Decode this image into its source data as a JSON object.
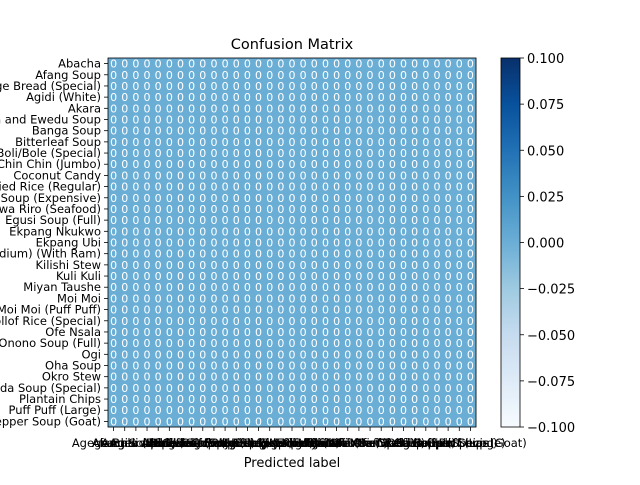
{
  "chart_data": {
    "type": "heatmap",
    "title": "Confusion Matrix",
    "xlabel": "Predicted label",
    "ylabel": "",
    "row_labels": [
      "Abacha",
      "Afang Soup",
      "Agege Bread (Special)",
      "Agidi (White)",
      "Akara",
      "Amala and Ewedu Soup",
      "Banga Soup",
      "Bitterleaf Soup",
      "Boli/Bole (Special)",
      "Chin Chin (Jumbo)",
      "Coconut Candy",
      "Fried Rice (Regular)",
      "Edikang Ikong Soup (Expensive)",
      "Ewa Riro (Seafood)",
      "Egusi Soup (Full)",
      "Ekpang Nkukwo",
      "Ekpang Ubi",
      "Nkwobi (Medium) (With Ram)",
      "Kilishi Stew",
      "Kuli Kuli",
      "Miyan Taushe",
      "Moi Moi",
      "Moi Moi (Puff Puff)",
      "Jollof Rice (Special)",
      "Ofe Nsala",
      "Ofe Onono Soup (Full)",
      "Ogi",
      "Oha Soup",
      "Okro Stew",
      "Ofada Soup (Special)",
      "Plantain Chips",
      "Puff Puff (Large)",
      "Pepper Soup (Goat)"
    ],
    "col_labels": [
      "Abacha",
      "Afang Soup",
      "Agege Bread (Special)",
      "Agidi (White)",
      "Akara",
      "Amala and Ewedu Soup",
      "Banga Soup",
      "Bitterleaf Soup",
      "Boli/Bole (Special)",
      "Chin Chin (Jumbo)",
      "Coconut Candy",
      "Fried Rice (Regular)",
      "Edikang Ikong Soup (Expensive)",
      "Ewa Riro (Seafood)",
      "Egusi Soup (Full)",
      "Ekpang Nkukwo",
      "Ekpang Ubi",
      "Nkwobi (Medium) (With Ram)",
      "Kilishi Stew",
      "Kuli Kuli",
      "Miyan Taushe",
      "Moi Moi",
      "Moi Moi (Puff Puff)",
      "Jollof Rice (Special)",
      "Ofe Nsala",
      "Ofe Onono Soup (Full)",
      "Ogi",
      "Oha Soup",
      "Okro Stew",
      "Ofada Soup (Special)",
      "Plantain Chips",
      "Puff Puff (Large)",
      "Pepper Soup (Goat)"
    ],
    "cell_value": 0,
    "cell_label": "0",
    "colorbar": {
      "ticks": [
        "0.100",
        "0.075",
        "0.050",
        "0.025",
        "0.000",
        "−0.025",
        "−0.050",
        "−0.075",
        "−0.100"
      ],
      "range": [
        -0.1,
        0.1
      ],
      "cmap": "Blues",
      "low_color": "#f7fbff",
      "high_color": "#08306b"
    },
    "colors": {
      "cell_fill": "#6aaed6",
      "cell_text": "#ffffff"
    }
  }
}
